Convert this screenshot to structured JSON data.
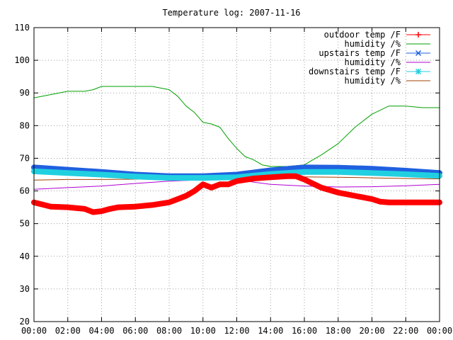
{
  "chart_data": {
    "type": "line",
    "title": "Temperature log: 2007-11-16",
    "xlabel": "",
    "ylabel": "",
    "x_ticks": [
      "00:00",
      "02:00",
      "04:00",
      "06:00",
      "08:00",
      "10:00",
      "12:00",
      "14:00",
      "16:00",
      "18:00",
      "20:00",
      "22:00",
      "00:00"
    ],
    "xlim": [
      0,
      24
    ],
    "ylim": [
      20,
      110
    ],
    "y_ticks": [
      20,
      30,
      40,
      50,
      60,
      70,
      80,
      90,
      100,
      110
    ],
    "grid": true,
    "legend_position": "top-right",
    "series": [
      {
        "name": "outdoor temp /F",
        "color": "#ff0000",
        "style": "thick",
        "x": [
          0,
          1,
          2,
          3,
          3.5,
          4,
          4.5,
          5,
          6,
          7,
          8,
          9,
          9.5,
          10,
          10.5,
          11,
          11.5,
          12,
          13,
          14,
          15,
          15.5,
          16,
          17,
          18,
          19,
          20,
          20.5,
          21,
          22,
          23,
          24
        ],
        "y": [
          56.5,
          55.2,
          55,
          54.5,
          53.5,
          53.8,
          54.5,
          55,
          55.2,
          55.7,
          56.5,
          58.5,
          60,
          62,
          61,
          62,
          62,
          63,
          63.8,
          64.2,
          64.5,
          64.5,
          63.5,
          61,
          59.5,
          58.5,
          57.5,
          56.7,
          56.5,
          56.5,
          56.5,
          56.5
        ]
      },
      {
        "name": "humidity /%",
        "color": "#00a000",
        "style": "thin",
        "x": [
          0,
          1,
          2,
          3,
          3.5,
          4,
          5,
          6,
          7,
          8,
          8.5,
          9,
          9.5,
          10,
          10.5,
          11,
          11.5,
          12,
          12.5,
          13,
          13.5,
          14,
          15,
          16,
          16.5,
          17,
          18,
          19,
          20,
          21,
          22,
          23,
          24
        ],
        "y": [
          88.5,
          89.5,
          90.5,
          90.5,
          91,
          92,
          92,
          92,
          92,
          91,
          89,
          86,
          84,
          81,
          80.5,
          79.5,
          76,
          73,
          70.5,
          69.5,
          68,
          67.5,
          67.5,
          68,
          69.5,
          71,
          74.5,
          79.5,
          83.5,
          86,
          86,
          85.5,
          85.5
        ]
      },
      {
        "name": "upstairs temp /F",
        "color": "#2060e0",
        "style": "thick",
        "x": [
          0,
          2,
          4,
          6,
          8,
          10,
          12,
          14,
          16,
          18,
          20,
          22,
          24
        ],
        "y": [
          67.2,
          66.5,
          65.8,
          65,
          64.5,
          64.5,
          65,
          66.3,
          67.2,
          67.1,
          66.8,
          66.2,
          65.5
        ]
      },
      {
        "name": "humidity /%",
        "color": "#b000d0",
        "style": "thin",
        "x": [
          0,
          2,
          4,
          6,
          8,
          10,
          12,
          13,
          14,
          16,
          18,
          20,
          22,
          24
        ],
        "y": [
          60.5,
          61,
          61.5,
          62.3,
          63,
          63.4,
          63.5,
          62.7,
          62,
          61.5,
          61.2,
          61.3,
          61.6,
          62
        ]
      },
      {
        "name": "downstairs temp /F",
        "color": "#20d0e0",
        "style": "thick",
        "x": [
          0,
          2,
          4,
          6,
          8,
          10,
          12,
          14,
          16,
          18,
          20,
          22,
          24
        ],
        "y": [
          66,
          65.5,
          65,
          64.4,
          64,
          64,
          64.2,
          65.2,
          65.8,
          65.8,
          65.5,
          65.1,
          64.6
        ]
      },
      {
        "name": "humidity /%",
        "color": "#a04000",
        "style": "thin",
        "x": [
          0,
          2,
          4,
          6,
          8,
          10,
          12,
          14,
          16,
          18,
          20,
          22,
          24
        ],
        "y": [
          63.3,
          63.5,
          63.5,
          63.6,
          63.8,
          64,
          64.2,
          64.3,
          64.3,
          64.2,
          64,
          63.8,
          63.7
        ]
      }
    ]
  }
}
